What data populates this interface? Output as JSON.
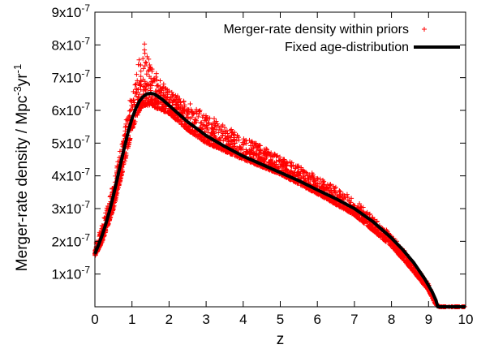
{
  "chart_data": {
    "type": "scatter",
    "xlabel": "z",
    "ylabel_parts": [
      "Merger-rate density / Mpc",
      "-3",
      "yr",
      "-1"
    ],
    "xlim": [
      0,
      10
    ],
    "ylim": [
      0,
      9e-07
    ],
    "x_ticks": [
      {
        "value": 0,
        "label": "0"
      },
      {
        "value": 1,
        "label": "1"
      },
      {
        "value": 2,
        "label": "2"
      },
      {
        "value": 3,
        "label": "3"
      },
      {
        "value": 4,
        "label": "4"
      },
      {
        "value": 5,
        "label": "5"
      },
      {
        "value": 6,
        "label": "6"
      },
      {
        "value": 7,
        "label": "7"
      },
      {
        "value": 8,
        "label": "8"
      },
      {
        "value": 9,
        "label": "9"
      },
      {
        "value": 10,
        "label": "10"
      }
    ],
    "y_ticks": [
      {
        "value": 1e-07,
        "mant": "1x10",
        "exp": "-7"
      },
      {
        "value": 2e-07,
        "mant": "2x10",
        "exp": "-7"
      },
      {
        "value": 3e-07,
        "mant": "3x10",
        "exp": "-7"
      },
      {
        "value": 4e-07,
        "mant": "4x10",
        "exp": "-7"
      },
      {
        "value": 5e-07,
        "mant": "5x10",
        "exp": "-7"
      },
      {
        "value": 6e-07,
        "mant": "6x10",
        "exp": "-7"
      },
      {
        "value": 7e-07,
        "mant": "7x10",
        "exp": "-7"
      },
      {
        "value": 8e-07,
        "mant": "8x10",
        "exp": "-7"
      },
      {
        "value": 9e-07,
        "mant": "9x10",
        "exp": "-7"
      }
    ],
    "legend_position": "top-right",
    "grid": false,
    "series": [
      {
        "name": "Merger-rate density within priors",
        "kind": "scatter",
        "marker": "plus",
        "color": "#ff0000",
        "envelope": {
          "x": [
            0,
            0.2,
            0.5,
            0.8,
            1.0,
            1.2,
            1.3,
            1.5,
            2.0,
            2.5,
            3.0,
            4.0,
            5.0,
            6.0,
            7.0,
            8.0,
            8.5,
            9.0,
            9.2,
            9.3
          ],
          "upper": [
            1.9e-07,
            2.5e-07,
            3.8e-07,
            5.5e-07,
            6.6e-07,
            7.6e-07,
            8.2e-07,
            7.4e-07,
            6.6e-07,
            6.3e-07,
            5.9e-07,
            5.2e-07,
            4.6e-07,
            4e-07,
            3.3e-07,
            2.2e-07,
            1.5e-07,
            7e-08,
            1.5e-08,
            0
          ],
          "lower": [
            1.55e-07,
            2e-07,
            3e-07,
            4.4e-07,
            5.4e-07,
            6e-07,
            6.15e-07,
            6.15e-07,
            5.9e-07,
            5.4e-07,
            5e-07,
            4.5e-07,
            4.05e-07,
            3.45e-07,
            2.8e-07,
            1.85e-07,
            1.2e-07,
            5e-08,
            5e-09,
            0
          ]
        }
      },
      {
        "name": "Fixed age-distribution",
        "kind": "line",
        "color": "#000000",
        "x": [
          0,
          0.1,
          0.2,
          0.3,
          0.4,
          0.5,
          0.6,
          0.7,
          0.8,
          0.9,
          1.0,
          1.1,
          1.2,
          1.3,
          1.4,
          1.5,
          1.6,
          1.8,
          2.0,
          2.2,
          2.5,
          2.8,
          3.0,
          3.5,
          4.0,
          4.5,
          5.0,
          5.5,
          6.0,
          6.5,
          7.0,
          7.5,
          8.0,
          8.3,
          8.6,
          8.9,
          9.1,
          9.2,
          9.25,
          9.5,
          10
        ],
        "y": [
          1.62e-07,
          1.9e-07,
          2.2e-07,
          2.55e-07,
          2.95e-07,
          3.4e-07,
          3.9e-07,
          4.4e-07,
          4.9e-07,
          5.35e-07,
          5.75e-07,
          6.05e-07,
          6.28e-07,
          6.42e-07,
          6.5e-07,
          6.52e-07,
          6.5e-07,
          6.35e-07,
          6.15e-07,
          5.95e-07,
          5.65e-07,
          5.4e-07,
          5.23e-07,
          4.9e-07,
          4.6e-07,
          4.35e-07,
          4.1e-07,
          3.85e-07,
          3.57e-07,
          3.3e-07,
          3e-07,
          2.6e-07,
          2.1e-07,
          1.75e-07,
          1.35e-07,
          8.5e-08,
          4.5e-08,
          2e-08,
          0,
          0,
          0
        ]
      }
    ]
  }
}
